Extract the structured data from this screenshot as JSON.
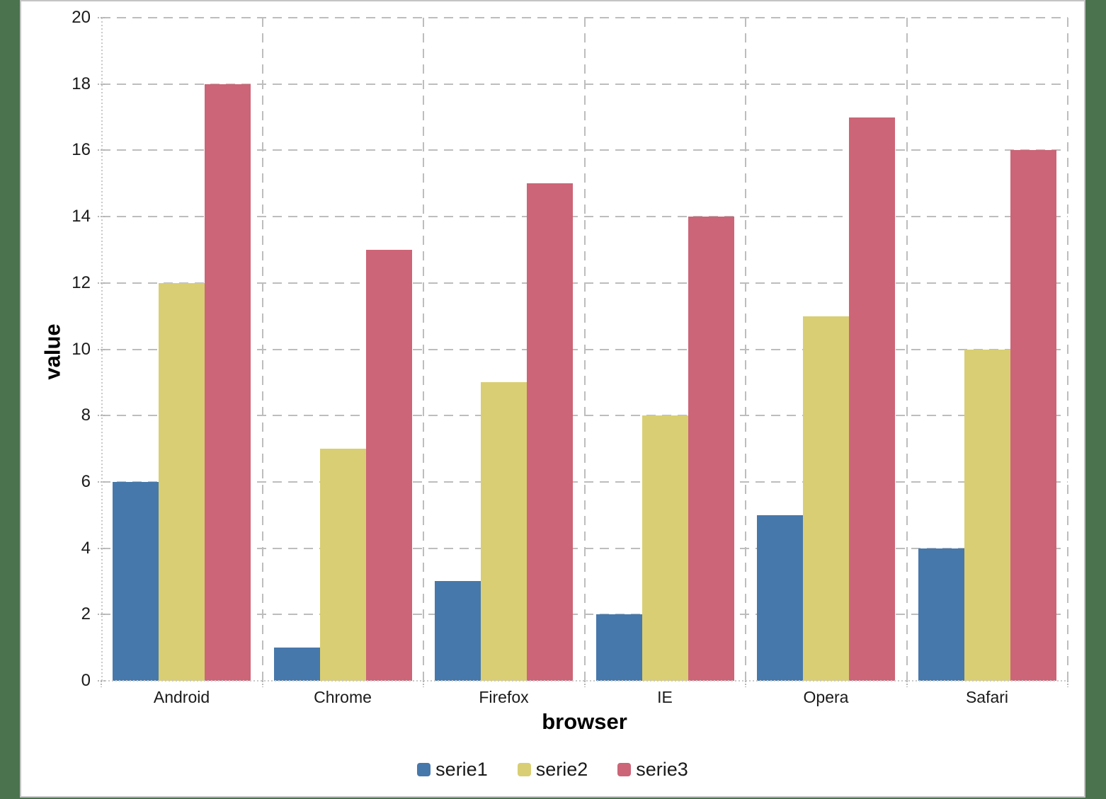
{
  "background_color": "#4A734E",
  "canvas": {
    "background": "#FFFFFF",
    "border_color": "#C4C4C4"
  },
  "chart_data": {
    "type": "bar",
    "title": "",
    "categories": [
      "Android",
      "Chrome",
      "Firefox",
      "IE",
      "Opera",
      "Safari"
    ],
    "series": [
      {
        "name": "serie1",
        "color": "#4778AB",
        "values": [
          6,
          1,
          3,
          2,
          5,
          4
        ]
      },
      {
        "name": "serie2",
        "color": "#D9CE73",
        "values": [
          12,
          7,
          9,
          8,
          11,
          10
        ]
      },
      {
        "name": "serie3",
        "color": "#CC6577",
        "values": [
          18,
          13,
          15,
          14,
          17,
          16
        ]
      }
    ],
    "xlabel": "browser",
    "ylabel": "value",
    "ylim": [
      0,
      20
    ],
    "yticks": [
      0,
      2,
      4,
      6,
      8,
      10,
      12,
      14,
      16,
      18,
      20
    ],
    "grid": true,
    "gridline_color": "#BDBDBD",
    "axis_line_color": "#C9C9C9",
    "tick_label_color": "#1A1A1A",
    "legend_position": "bottom"
  }
}
